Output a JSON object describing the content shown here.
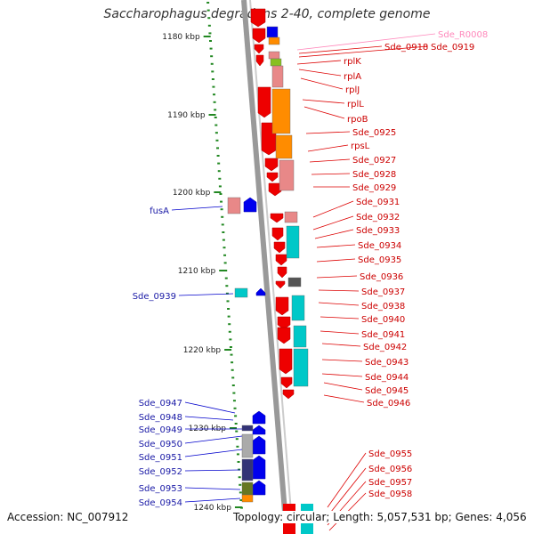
{
  "title": "Saccharophagus degradans 2-40, complete genome",
  "footer": {
    "accession": "Accession: NC_007912",
    "topology": "Topology: circular; Length: 5,057,531 bp; Genes: 4,056"
  },
  "colors": {
    "forward_gene": "#0000ee",
    "reverse_gene": "#ee0000",
    "label_forward": "#1a1aa6",
    "label_reverse": "#cc0000",
    "label_rna": "#ff88bb",
    "axis_tick": "#228822",
    "backbone": "#999999",
    "cds_orange": "#ff8c00",
    "cds_cyan": "#00c8c8",
    "cds_pink": "#e88888",
    "cds_green": "#88c020",
    "cds_navy": "#333377",
    "cds_olive": "#667722",
    "cds_grey": "#555555"
  },
  "scale": [
    {
      "label": "1180 kbp"
    },
    {
      "label": "1190 kbp"
    },
    {
      "label": "1200 kbp"
    },
    {
      "label": "1210 kbp"
    },
    {
      "label": "1220 kbp"
    },
    {
      "label": "1230 kbp"
    },
    {
      "label": "1240 kbp"
    }
  ],
  "left_labels": [
    {
      "text": "fusA"
    },
    {
      "text": "Sde_0939"
    },
    {
      "text": "Sde_0947"
    },
    {
      "text": "Sde_0948"
    },
    {
      "text": "Sde_0949"
    },
    {
      "text": "Sde_0950"
    },
    {
      "text": "Sde_0951"
    },
    {
      "text": "Sde_0952"
    },
    {
      "text": "Sde_0953"
    },
    {
      "text": "Sde_0954"
    }
  ],
  "right_labels": [
    {
      "text": "Sde_R0008",
      "kind": "rna"
    },
    {
      "text": "Sde_0918",
      "kind": "cds"
    },
    {
      "text": "Sde_0919",
      "kind": "cds"
    },
    {
      "text": "rplK",
      "kind": "cds"
    },
    {
      "text": "rplA",
      "kind": "cds"
    },
    {
      "text": "rplJ",
      "kind": "cds"
    },
    {
      "text": "rplL",
      "kind": "cds"
    },
    {
      "text": "rpoB",
      "kind": "cds"
    },
    {
      "text": "Sde_0925",
      "kind": "cds"
    },
    {
      "text": "rpsL",
      "kind": "cds"
    },
    {
      "text": "Sde_0927",
      "kind": "cds"
    },
    {
      "text": "Sde_0928",
      "kind": "cds"
    },
    {
      "text": "Sde_0929",
      "kind": "cds"
    },
    {
      "text": "Sde_0931",
      "kind": "cds"
    },
    {
      "text": "Sde_0932",
      "kind": "cds"
    },
    {
      "text": "Sde_0933",
      "kind": "cds"
    },
    {
      "text": "Sde_0934",
      "kind": "cds"
    },
    {
      "text": "Sde_0935",
      "kind": "cds"
    },
    {
      "text": "Sde_0936",
      "kind": "cds"
    },
    {
      "text": "Sde_0937",
      "kind": "cds"
    },
    {
      "text": "Sde_0938",
      "kind": "cds"
    },
    {
      "text": "Sde_0940",
      "kind": "cds"
    },
    {
      "text": "Sde_0941",
      "kind": "cds"
    },
    {
      "text": "Sde_0942",
      "kind": "cds"
    },
    {
      "text": "Sde_0943",
      "kind": "cds"
    },
    {
      "text": "Sde_0944",
      "kind": "cds"
    },
    {
      "text": "Sde_0945",
      "kind": "cds"
    },
    {
      "text": "Sde_0946",
      "kind": "cds"
    },
    {
      "text": "Sde_0955",
      "kind": "cds"
    },
    {
      "text": "Sde_0956",
      "kind": "cds"
    },
    {
      "text": "Sde_0957",
      "kind": "cds"
    },
    {
      "text": "Sde_0958",
      "kind": "cds"
    }
  ]
}
